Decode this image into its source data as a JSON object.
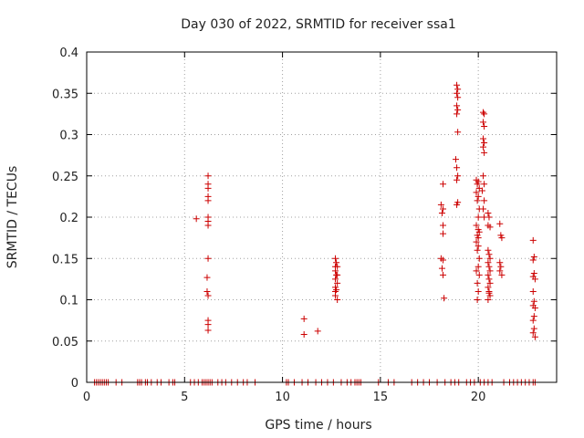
{
  "chart_data": {
    "type": "scatter",
    "title": "Day 030 of 2022, SRMTID for receiver ssa1",
    "xlabel": "GPS time / hours",
    "ylabel": "SRMTID / TECUs",
    "xlim": [
      0,
      24
    ],
    "ylim": [
      0,
      0.4
    ],
    "xticks": [
      0,
      5,
      10,
      15,
      20
    ],
    "xtick_labels": [
      "0",
      "5",
      "10",
      "15",
      "20"
    ],
    "yticks": [
      0,
      0.05,
      0.1,
      0.15,
      0.2,
      0.25,
      0.3,
      0.35,
      0.4
    ],
    "ytick_labels": [
      "0",
      "0.05",
      "0.1",
      "0.15",
      "0.2",
      "0.25",
      "0.3",
      "0.35",
      "0.4"
    ],
    "grid": true,
    "marker": "plus",
    "color": "#cc0000",
    "series": [
      {
        "name": "SRMTID",
        "points": [
          [
            5.6,
            0.198
          ],
          [
            6.2,
            0.25
          ],
          [
            6.2,
            0.24
          ],
          [
            6.2,
            0.235
          ],
          [
            6.2,
            0.225
          ],
          [
            6.2,
            0.22
          ],
          [
            6.2,
            0.2
          ],
          [
            6.2,
            0.195
          ],
          [
            6.2,
            0.19
          ],
          [
            6.2,
            0.15
          ],
          [
            6.15,
            0.127
          ],
          [
            6.15,
            0.11
          ],
          [
            6.2,
            0.105
          ],
          [
            6.2,
            0.075
          ],
          [
            6.2,
            0.07
          ],
          [
            6.2,
            0.063
          ],
          [
            11.1,
            0.077
          ],
          [
            11.1,
            0.058
          ],
          [
            11.8,
            0.062
          ],
          [
            12.7,
            0.15
          ],
          [
            12.75,
            0.145
          ],
          [
            12.7,
            0.14
          ],
          [
            12.8,
            0.14
          ],
          [
            12.7,
            0.135
          ],
          [
            12.75,
            0.13
          ],
          [
            12.7,
            0.125
          ],
          [
            12.8,
            0.12
          ],
          [
            12.7,
            0.115
          ],
          [
            12.75,
            0.112
          ],
          [
            12.7,
            0.105
          ],
          [
            12.8,
            0.1
          ],
          [
            12.7,
            0.11
          ],
          [
            12.8,
            0.13
          ],
          [
            18.2,
            0.24
          ],
          [
            18.1,
            0.215
          ],
          [
            18.2,
            0.21
          ],
          [
            18.15,
            0.205
          ],
          [
            18.2,
            0.19
          ],
          [
            18.2,
            0.18
          ],
          [
            18.1,
            0.15
          ],
          [
            18.2,
            0.148
          ],
          [
            18.15,
            0.138
          ],
          [
            18.2,
            0.13
          ],
          [
            18.25,
            0.102
          ],
          [
            18.9,
            0.36
          ],
          [
            18.95,
            0.355
          ],
          [
            18.9,
            0.35
          ],
          [
            18.95,
            0.345
          ],
          [
            18.9,
            0.335
          ],
          [
            18.95,
            0.33
          ],
          [
            18.9,
            0.325
          ],
          [
            18.95,
            0.303
          ],
          [
            18.85,
            0.27
          ],
          [
            18.9,
            0.26
          ],
          [
            18.95,
            0.25
          ],
          [
            18.9,
            0.245
          ],
          [
            18.95,
            0.218
          ],
          [
            18.9,
            0.215
          ],
          [
            19.9,
            0.245
          ],
          [
            20.0,
            0.243
          ],
          [
            19.95,
            0.24
          ],
          [
            20.05,
            0.235
          ],
          [
            19.9,
            0.23
          ],
          [
            20.0,
            0.225
          ],
          [
            19.95,
            0.22
          ],
          [
            20.05,
            0.21
          ],
          [
            20.0,
            0.2
          ],
          [
            19.9,
            0.19
          ],
          [
            20.0,
            0.185
          ],
          [
            20.05,
            0.182
          ],
          [
            19.95,
            0.178
          ],
          [
            20.0,
            0.175
          ],
          [
            19.9,
            0.17
          ],
          [
            20.0,
            0.165
          ],
          [
            19.95,
            0.16
          ],
          [
            20.05,
            0.15
          ],
          [
            20.0,
            0.14
          ],
          [
            19.9,
            0.135
          ],
          [
            20.05,
            0.13
          ],
          [
            19.95,
            0.12
          ],
          [
            20.0,
            0.11
          ],
          [
            19.95,
            0.1
          ],
          [
            20.25,
            0.327
          ],
          [
            20.3,
            0.325
          ],
          [
            20.25,
            0.315
          ],
          [
            20.3,
            0.31
          ],
          [
            20.25,
            0.295
          ],
          [
            20.3,
            0.29
          ],
          [
            20.25,
            0.285
          ],
          [
            20.3,
            0.278
          ],
          [
            20.25,
            0.25
          ],
          [
            20.3,
            0.24
          ],
          [
            20.2,
            0.232
          ],
          [
            20.3,
            0.22
          ],
          [
            20.25,
            0.21
          ],
          [
            20.3,
            0.2
          ],
          [
            20.5,
            0.205
          ],
          [
            20.55,
            0.2
          ],
          [
            20.5,
            0.19
          ],
          [
            20.6,
            0.188
          ],
          [
            20.5,
            0.16
          ],
          [
            20.55,
            0.155
          ],
          [
            20.6,
            0.15
          ],
          [
            20.5,
            0.145
          ],
          [
            20.55,
            0.14
          ],
          [
            20.6,
            0.135
          ],
          [
            20.5,
            0.13
          ],
          [
            20.55,
            0.125
          ],
          [
            20.6,
            0.12
          ],
          [
            20.5,
            0.115
          ],
          [
            20.55,
            0.11
          ],
          [
            20.6,
            0.105
          ],
          [
            20.5,
            0.1
          ],
          [
            20.55,
            0.108
          ],
          [
            21.1,
            0.192
          ],
          [
            21.15,
            0.178
          ],
          [
            21.2,
            0.175
          ],
          [
            21.1,
            0.145
          ],
          [
            21.15,
            0.14
          ],
          [
            21.1,
            0.135
          ],
          [
            21.2,
            0.13
          ],
          [
            22.8,
            0.172
          ],
          [
            22.85,
            0.152
          ],
          [
            22.8,
            0.148
          ],
          [
            22.85,
            0.132
          ],
          [
            22.8,
            0.128
          ],
          [
            22.9,
            0.125
          ],
          [
            22.8,
            0.11
          ],
          [
            22.85,
            0.098
          ],
          [
            22.8,
            0.093
          ],
          [
            22.9,
            0.09
          ],
          [
            22.85,
            0.08
          ],
          [
            22.8,
            0.075
          ],
          [
            22.85,
            0.065
          ],
          [
            22.8,
            0.06
          ],
          [
            22.9,
            0.055
          ]
        ],
        "zero_points_x": [
          0.4,
          0.5,
          0.6,
          0.7,
          0.8,
          0.9,
          1.0,
          1.1,
          1.5,
          1.8,
          2.6,
          2.7,
          2.8,
          3.0,
          3.1,
          3.3,
          3.6,
          3.8,
          4.2,
          4.4,
          4.5,
          5.3,
          5.5,
          5.7,
          5.9,
          6.0,
          6.1,
          6.2,
          6.3,
          6.4,
          6.7,
          6.9,
          7.1,
          7.4,
          7.7,
          8.0,
          8.2,
          8.6,
          10.2,
          10.3,
          10.6,
          11.0,
          11.3,
          11.7,
          12.0,
          12.3,
          12.6,
          13.0,
          13.3,
          13.5,
          13.7,
          13.8,
          13.9,
          14.0,
          14.9,
          15.4,
          15.7,
          16.6,
          16.9,
          17.2,
          17.5,
          17.9,
          18.3,
          18.6,
          18.8,
          19.0,
          19.4,
          19.6,
          19.8,
          20.1,
          20.3,
          20.5,
          20.7,
          21.3,
          21.6,
          21.8,
          22.0,
          22.2,
          22.4,
          22.6,
          22.8,
          22.9
        ]
      }
    ]
  }
}
